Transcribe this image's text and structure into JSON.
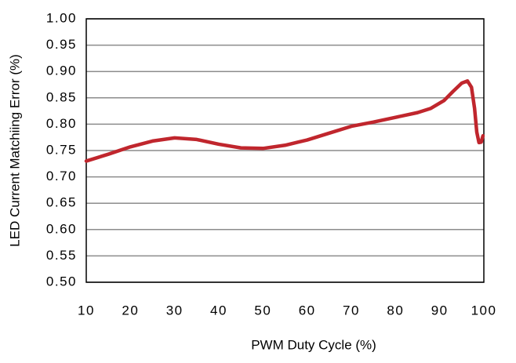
{
  "chart_data": {
    "type": "line",
    "xlabel": "PWM Duty Cycle (%)",
    "ylabel": "LED Current Matchiing Error (%)",
    "x": [
      10,
      15,
      20,
      25,
      30,
      35,
      40,
      45,
      50,
      55,
      60,
      65,
      70,
      75,
      80,
      85,
      88,
      91,
      93,
      95,
      96.3,
      97.2,
      97.9,
      98.4,
      98.9,
      99.4,
      99.8
    ],
    "series": [
      {
        "name": null,
        "color": "#c0262d",
        "values": [
          0.73,
          0.743,
          0.757,
          0.768,
          0.774,
          0.771,
          0.762,
          0.755,
          0.754,
          0.76,
          0.77,
          0.783,
          0.796,
          0.804,
          0.813,
          0.822,
          0.83,
          0.845,
          0.862,
          0.878,
          0.882,
          0.87,
          0.83,
          0.785,
          0.765,
          0.766,
          0.778
        ]
      }
    ],
    "xlim": [
      10,
      100
    ],
    "xticks": [
      10,
      20,
      30,
      40,
      50,
      60,
      70,
      80,
      90,
      100
    ],
    "ylim": [
      0.5,
      1.0
    ],
    "yticks": [
      {
        "value": 0.5,
        "label": "0.50"
      },
      0.55,
      {
        "value": 0.6,
        "label": "0.60"
      },
      0.65,
      {
        "value": 0.7,
        "label": "0.70"
      },
      0.75,
      {
        "value": 0.8,
        "label": "0.80"
      },
      0.85,
      {
        "value": 0.9,
        "label": "0.90"
      },
      0.95,
      {
        "value": 1.0,
        "label": "1.00"
      }
    ],
    "grid": true
  }
}
